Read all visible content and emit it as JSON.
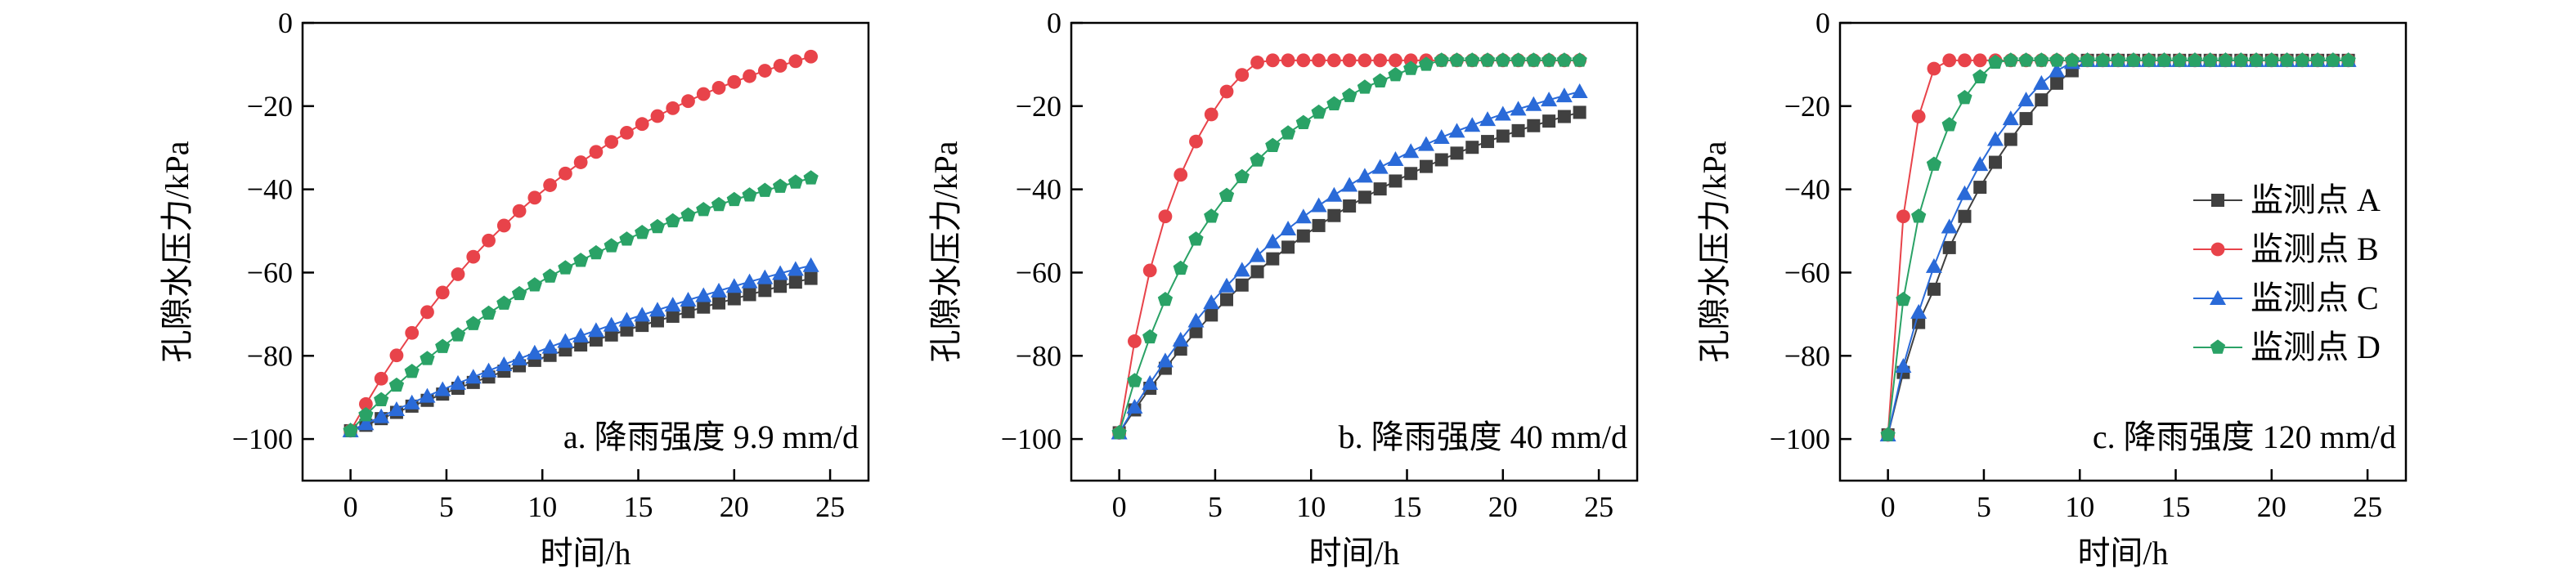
{
  "figure": {
    "ylabel": "孔隙水压力/kPa",
    "xlabel": "时间/h",
    "legend_placement": "right (inside panel c)"
  },
  "chart_data": [
    {
      "type": "line",
      "title": "a. 降雨强度 9.9 mm/d",
      "xlabel": "时间/h",
      "ylabel": "孔隙水压力/kPa",
      "xlim": [
        -2.5,
        27
      ],
      "ylim": [
        -110,
        0
      ],
      "xticks": [
        0,
        5,
        10,
        15,
        20,
        25
      ],
      "yticks": [
        0,
        -20,
        -40,
        -60,
        -80,
        -100
      ],
      "grid": false,
      "x": [
        0,
        0.8,
        1.6,
        2.4,
        3.2,
        4.0,
        4.8,
        5.6,
        6.4,
        7.2,
        8.0,
        8.8,
        9.6,
        10.4,
        11.2,
        12.0,
        12.8,
        13.6,
        14.4,
        15.2,
        16.0,
        16.8,
        17.6,
        18.4,
        19.2,
        20.0,
        20.8,
        21.6,
        22.4,
        23.2,
        24.0
      ],
      "series": [
        {
          "name": "监测点 A",
          "values": [
            -98.0,
            -96.7,
            -95.1,
            -93.6,
            -92.1,
            -90.7,
            -89.2,
            -87.8,
            -86.4,
            -85.1,
            -83.7,
            -82.4,
            -81.1,
            -79.9,
            -78.6,
            -77.4,
            -76.2,
            -75.0,
            -73.8,
            -72.7,
            -71.6,
            -70.5,
            -69.4,
            -68.3,
            -67.3,
            -66.3,
            -65.3,
            -64.3,
            -63.3,
            -62.3,
            -61.4
          ]
        },
        {
          "name": "监测点 B",
          "values": [
            -98.0,
            -91.6,
            -85.5,
            -79.9,
            -74.5,
            -69.5,
            -64.8,
            -60.4,
            -56.2,
            -52.3,
            -48.7,
            -45.2,
            -42.0,
            -39.0,
            -36.2,
            -33.5,
            -31.0,
            -28.6,
            -26.4,
            -24.3,
            -22.4,
            -20.5,
            -18.8,
            -17.1,
            -15.6,
            -14.2,
            -12.8,
            -11.5,
            -10.3,
            -9.2,
            -8.1
          ]
        },
        {
          "name": "监测点 C",
          "values": [
            -98.0,
            -96.3,
            -94.6,
            -92.9,
            -91.3,
            -89.7,
            -88.1,
            -86.6,
            -85.1,
            -83.6,
            -82.1,
            -80.7,
            -79.3,
            -77.9,
            -76.5,
            -75.2,
            -73.9,
            -72.6,
            -71.4,
            -70.2,
            -69.0,
            -67.8,
            -66.6,
            -65.5,
            -64.4,
            -63.3,
            -62.2,
            -61.2,
            -60.2,
            -59.2,
            -58.3
          ]
        },
        {
          "name": "监测点 D",
          "values": [
            -98.0,
            -94.2,
            -90.6,
            -87.1,
            -83.8,
            -80.7,
            -77.8,
            -75.0,
            -72.3,
            -69.8,
            -67.4,
            -65.1,
            -63.0,
            -60.9,
            -58.9,
            -57.1,
            -55.3,
            -53.6,
            -52.0,
            -50.4,
            -49.0,
            -47.6,
            -46.2,
            -44.9,
            -43.7,
            -42.5,
            -41.4,
            -40.3,
            -39.3,
            -38.3,
            -37.3
          ]
        }
      ]
    },
    {
      "type": "line",
      "title": "b. 降雨强度 40 mm/d",
      "xlabel": "时间/h",
      "ylabel": "孔隙水压力/kPa",
      "xlim": [
        -2.5,
        27
      ],
      "ylim": [
        -110,
        0
      ],
      "xticks": [
        0,
        5,
        10,
        15,
        20,
        25
      ],
      "yticks": [
        0,
        -20,
        -40,
        -60,
        -80,
        -100
      ],
      "grid": false,
      "x": [
        0,
        0.8,
        1.6,
        2.4,
        3.2,
        4.0,
        4.8,
        5.6,
        6.4,
        7.2,
        8.0,
        8.8,
        9.6,
        10.4,
        11.2,
        12.0,
        12.8,
        13.6,
        14.4,
        15.2,
        16.0,
        16.8,
        17.6,
        18.4,
        19.2,
        20.0,
        20.8,
        21.6,
        22.4,
        23.2,
        24.0
      ],
      "series": [
        {
          "name": "监测点 A",
          "values": [
            -98.5,
            -93.0,
            -87.8,
            -83.0,
            -78.4,
            -74.2,
            -70.2,
            -66.5,
            -63.0,
            -59.8,
            -56.7,
            -53.9,
            -51.2,
            -48.7,
            -46.3,
            -44.0,
            -41.9,
            -39.9,
            -38.0,
            -36.2,
            -34.5,
            -32.9,
            -31.3,
            -29.9,
            -28.5,
            -27.2,
            -25.9,
            -24.7,
            -23.6,
            -22.5,
            -21.5
          ]
        },
        {
          "name": "监测点 B",
          "values": [
            -98.5,
            -76.5,
            -59.5,
            -46.5,
            -36.5,
            -28.5,
            -22.0,
            -16.5,
            -12.5,
            -9.5,
            -9.0,
            -9.0,
            -9.0,
            -9.0,
            -9.0,
            -9.0,
            -9.0,
            -9.0,
            -9.0,
            -9.0,
            -9.0,
            -9.0,
            -9.0,
            -9.0,
            -9.0,
            -9.0,
            -9.0,
            -9.0,
            -9.0,
            -9.0,
            -9.0
          ]
        },
        {
          "name": "监测点 C",
          "values": [
            -98.5,
            -92.3,
            -86.6,
            -81.2,
            -76.2,
            -71.6,
            -67.2,
            -63.2,
            -59.4,
            -55.9,
            -52.6,
            -49.5,
            -46.6,
            -43.9,
            -41.4,
            -39.0,
            -36.8,
            -34.7,
            -32.8,
            -30.9,
            -29.2,
            -27.5,
            -26.0,
            -24.6,
            -23.2,
            -21.9,
            -20.7,
            -19.6,
            -18.5,
            -17.5,
            -16.5
          ]
        },
        {
          "name": "监测点 D",
          "values": [
            -98.5,
            -86.0,
            -75.5,
            -66.5,
            -59.0,
            -52.0,
            -46.5,
            -41.5,
            -37.0,
            -33.0,
            -29.5,
            -26.5,
            -24.0,
            -21.5,
            -19.5,
            -17.5,
            -15.5,
            -14.0,
            -12.5,
            -11.0,
            -10.0,
            -9.0,
            -9.0,
            -9.0,
            -9.0,
            -9.0,
            -9.0,
            -9.0,
            -9.0,
            -9.0,
            -9.0
          ]
        }
      ]
    },
    {
      "type": "line",
      "title": "c. 降雨强度 120 mm/d",
      "xlabel": "时间/h",
      "ylabel": "孔隙水压力/kPa",
      "xlim": [
        -2.5,
        27
      ],
      "ylim": [
        -110,
        0
      ],
      "xticks": [
        0,
        5,
        10,
        15,
        20,
        25
      ],
      "yticks": [
        0,
        -20,
        -40,
        -60,
        -80,
        -100
      ],
      "grid": false,
      "legend": "right",
      "x": [
        0,
        0.8,
        1.6,
        2.4,
        3.2,
        4.0,
        4.8,
        5.6,
        6.4,
        7.2,
        8.0,
        8.8,
        9.6,
        10.4,
        11.2,
        12.0,
        12.8,
        13.6,
        14.4,
        15.2,
        16.0,
        16.8,
        17.6,
        18.4,
        19.2,
        20.0,
        20.8,
        21.6,
        22.4,
        23.2,
        24.0
      ],
      "series": [
        {
          "name": "监测点 A",
          "values": [
            -99.0,
            -84.0,
            -72.0,
            -64.0,
            -54.0,
            -46.5,
            -39.5,
            -33.5,
            -28.0,
            -23.0,
            -18.5,
            -14.5,
            -11.5,
            -9.0,
            -9.0,
            -9.0,
            -9.0,
            -9.0,
            -9.0,
            -9.0,
            -9.0,
            -9.0,
            -9.0,
            -9.0,
            -9.0,
            -9.0,
            -9.0,
            -9.0,
            -9.0,
            -9.0,
            -9.0
          ]
        },
        {
          "name": "监测点 B",
          "values": [
            -99.0,
            -46.5,
            -22.5,
            -11.0,
            -9.0,
            -9.0,
            -9.0,
            -9.0,
            -9.0,
            -9.0,
            -9.0,
            -9.0,
            -9.0,
            -9.0,
            -9.0,
            -9.0,
            -9.0,
            -9.0,
            -9.0,
            -9.0,
            -9.0,
            -9.0,
            -9.0,
            -9.0,
            -9.0,
            -9.0,
            -9.0,
            -9.0,
            -9.0,
            -9.0,
            -9.0
          ]
        },
        {
          "name": "监测点 C",
          "values": [
            -99.0,
            -82.5,
            -69.5,
            -58.5,
            -49.0,
            -41.0,
            -34.0,
            -28.0,
            -23.0,
            -18.5,
            -14.5,
            -11.5,
            -9.5,
            -9.0,
            -9.0,
            -9.0,
            -9.0,
            -9.0,
            -9.0,
            -9.0,
            -9.0,
            -9.0,
            -9.0,
            -9.0,
            -9.0,
            -9.0,
            -9.0,
            -9.0,
            -9.0,
            -9.0,
            -9.0
          ]
        },
        {
          "name": "监测点 D",
          "values": [
            -99.0,
            -66.5,
            -46.5,
            -34.0,
            -24.5,
            -18.0,
            -13.0,
            -9.5,
            -9.0,
            -9.0,
            -9.0,
            -9.0,
            -9.0,
            -9.0,
            -9.0,
            -9.0,
            -9.0,
            -9.0,
            -9.0,
            -9.0,
            -9.0,
            -9.0,
            -9.0,
            -9.0,
            -9.0,
            -9.0,
            -9.0,
            -9.0,
            -9.0,
            -9.0,
            -9.0
          ]
        }
      ]
    }
  ],
  "styles": {
    "series": [
      {
        "color": "#404040",
        "marker": "square"
      },
      {
        "color": "#e8434a",
        "marker": "circle"
      },
      {
        "color": "#2a6ad8",
        "marker": "triangle"
      },
      {
        "color": "#2aa266",
        "marker": "pentagon"
      }
    ]
  }
}
